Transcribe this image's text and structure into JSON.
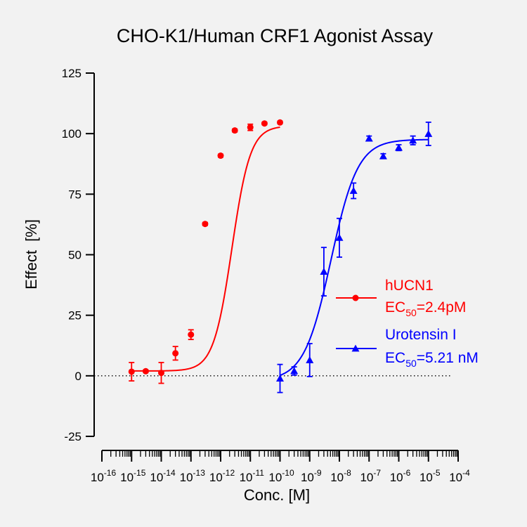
{
  "chart_data": {
    "type": "scatter",
    "title": "CHO-K1/Human CRF1 Agonist Assay",
    "xlabel": "Conc. [M]",
    "ylabel": "Effect  [%]",
    "x_scale": "log",
    "xlim": [
      1e-16,
      0.0001
    ],
    "ylim": [
      -25,
      125
    ],
    "y_ticks": [
      -25,
      0,
      25,
      50,
      75,
      100,
      125
    ],
    "x_tick_exponents": [
      -16,
      -15,
      -14,
      -13,
      -12,
      -11,
      -10,
      -9,
      -8,
      -7,
      -6,
      -5,
      -4
    ],
    "x_tick_base": "10",
    "zero_reference_line": "dotted",
    "legend_position": "right",
    "series": [
      {
        "name": "hUCN1",
        "annotation": {
          "prefix": "EC",
          "subscript": "50",
          "suffix": "=2.4pM"
        },
        "color": "#ff0000",
        "marker": "circle",
        "fit": {
          "bottom": 2,
          "top": 103.2,
          "ec50": 2.4e-12,
          "hill": 1.4
        },
        "points": [
          {
            "x": 1e-15,
            "y": 1.7,
            "err": 3.8
          },
          {
            "x": 3e-15,
            "y": 1.9,
            "err": 0.5
          },
          {
            "x": 1e-14,
            "y": 1.2,
            "err": 4.3
          },
          {
            "x": 3e-14,
            "y": 9.3,
            "err": 2.8
          },
          {
            "x": 1e-13,
            "y": 17,
            "err": 2
          },
          {
            "x": 3e-13,
            "y": 62.7,
            "err": 0.6
          },
          {
            "x": 1e-12,
            "y": 90.9,
            "err": 0.6
          },
          {
            "x": 3e-12,
            "y": 101.3,
            "err": 0.6
          },
          {
            "x": 1e-11,
            "y": 102.6,
            "err": 1.3
          },
          {
            "x": 3e-11,
            "y": 104.2,
            "err": 0.5
          },
          {
            "x": 1e-10,
            "y": 104.6,
            "err": 0.5
          }
        ]
      },
      {
        "name": "Urotensin I",
        "annotation": {
          "prefix": "EC",
          "subscript": "50",
          "suffix": "=5.21 nM"
        },
        "color": "#0000ff",
        "marker": "triangle",
        "fit": {
          "bottom": -2,
          "top": 97.6,
          "ec50": 5.21e-09,
          "hill": 0.96
        },
        "points": [
          {
            "x": 1e-10,
            "y": -1.1,
            "err": 5.8
          },
          {
            "x": 3e-10,
            "y": 2,
            "err": 1.7
          },
          {
            "x": 1e-09,
            "y": 6.5,
            "err": 6.8
          },
          {
            "x": 3e-09,
            "y": 43,
            "err": 10
          },
          {
            "x": 1e-08,
            "y": 57,
            "err": 8
          },
          {
            "x": 3e-08,
            "y": 76.4,
            "err": 3.2
          },
          {
            "x": 1e-07,
            "y": 98,
            "err": 1
          },
          {
            "x": 3e-07,
            "y": 90.7,
            "err": 1
          },
          {
            "x": 1e-06,
            "y": 94.2,
            "err": 1.2
          },
          {
            "x": 3e-06,
            "y": 97.2,
            "err": 1.8
          },
          {
            "x": 1e-05,
            "y": 99.9,
            "err": 4.8
          }
        ]
      }
    ]
  }
}
